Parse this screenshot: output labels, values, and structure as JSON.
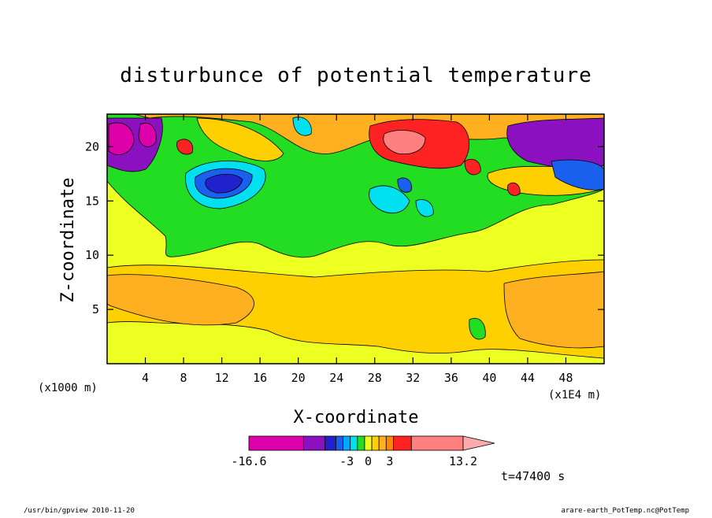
{
  "chart_data": {
    "type": "heatmap",
    "title": "disturbunce of potential temperature",
    "xlabel": "X-coordinate",
    "ylabel": "Z-coordinate",
    "x_scale_note_left": "(x1000 m)",
    "x_scale_note_right": "(x1E4 m)",
    "xlim": [
      0,
      52
    ],
    "ylim": [
      0,
      23
    ],
    "x_ticks": [
      "4",
      "8",
      "12",
      "16",
      "20",
      "24",
      "28",
      "32",
      "36",
      "40",
      "44",
      "48"
    ],
    "x_tick_values": [
      4,
      8,
      12,
      16,
      20,
      24,
      28,
      32,
      36,
      40,
      44,
      48
    ],
    "y_ticks": [
      "5",
      "10",
      "15",
      "20"
    ],
    "y_tick_values": [
      5,
      10,
      15,
      20
    ],
    "colorbar": {
      "min": -16.6,
      "max": 13.2,
      "labels": [
        "-16.6",
        "-3",
        "0",
        "3",
        "13.2"
      ],
      "label_values": [
        -16.6,
        -3,
        0,
        3,
        13.2
      ],
      "levels": [
        {
          "from": -16.6,
          "to": -9,
          "color": "#dd00aa"
        },
        {
          "from": -9,
          "to": -6,
          "color": "#8a10c0"
        },
        {
          "from": -6,
          "to": -4.5,
          "color": "#2222cc"
        },
        {
          "from": -4.5,
          "to": -3.5,
          "color": "#1a60ee"
        },
        {
          "from": -3.5,
          "to": -2.5,
          "color": "#00a8ff"
        },
        {
          "from": -2.5,
          "to": -1.5,
          "color": "#00e0ee"
        },
        {
          "from": -1.5,
          "to": -0.5,
          "color": "#22dd22"
        },
        {
          "from": -0.5,
          "to": 0.5,
          "color": "#eeff22"
        },
        {
          "from": 0.5,
          "to": 1.5,
          "color": "#ffd000"
        },
        {
          "from": 1.5,
          "to": 2.5,
          "color": "#ffb020"
        },
        {
          "from": 2.5,
          "to": 3.5,
          "color": "#ff8800"
        },
        {
          "from": 3.5,
          "to": 6,
          "color": "#ff2222"
        },
        {
          "from": 6,
          "to": 13.2,
          "color": "#ff8080"
        }
      ],
      "arrow_color": "#ffaaaa"
    },
    "regions": [
      {
        "name": "background",
        "value": 0,
        "color": "#eeff22"
      },
      {
        "name": "warm-lower-layer",
        "value": 1,
        "color": "#ffd000"
      },
      {
        "name": "warm-core-lower",
        "value": 2,
        "color": "#ffb020"
      },
      {
        "name": "cool-upper-band",
        "value": -1,
        "color": "#22dd22"
      },
      {
        "name": "strong-warm-anomaly",
        "value": 5,
        "color": "#ff2222"
      },
      {
        "name": "peak-warm-anomaly",
        "value": 8,
        "color": "#ff8080"
      },
      {
        "name": "strong-cold-anomaly-left",
        "value": -12,
        "color": "#dd00aa"
      },
      {
        "name": "cold-anomaly-right",
        "value": -7,
        "color": "#8a10c0"
      },
      {
        "name": "cold-blob",
        "value": -5,
        "color": "#2222cc"
      }
    ]
  },
  "annotations": {
    "time": "t=47400 s",
    "footer_left": "/usr/bin/gpview   2010-11-20",
    "footer_right": "arare-earth_PotTemp.nc@PotTemp"
  }
}
